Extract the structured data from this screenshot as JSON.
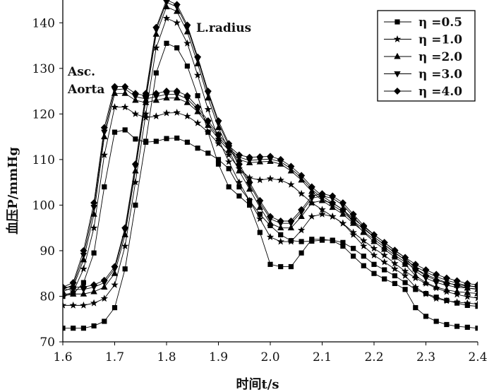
{
  "chart_data": {
    "type": "line",
    "xlabel": "时间t/s",
    "ylabel": "血压P/mmHg",
    "xlim": [
      1.6,
      2.4
    ],
    "ylim": [
      70,
      145
    ],
    "xticks": [
      "1.6",
      "1.7",
      "1.8",
      "1.9",
      "2.0",
      "2.1",
      "2.2",
      "2.3",
      "2.4"
    ],
    "yticks": [
      "70",
      "80",
      "90",
      "100",
      "110",
      "120",
      "130",
      "140"
    ],
    "grid": false,
    "legend_position": "top-right",
    "annotations": [
      {
        "text": "Asc.",
        "group": "Asc. Aorta"
      },
      {
        "text": "Aorta",
        "group": "Asc. Aorta"
      },
      {
        "text": "L.radius",
        "group": "L.radius"
      }
    ],
    "series_groups": [
      "Asc. Aorta",
      "L.radius"
    ],
    "series": [
      {
        "name": "η =0.5",
        "marker": "square",
        "aorta_x": [
          1.6,
          1.62,
          1.64,
          1.66,
          1.68,
          1.7,
          1.72,
          1.74,
          1.76,
          1.78,
          1.8,
          1.82,
          1.84,
          1.86,
          1.88,
          1.9,
          1.92,
          1.94,
          1.96,
          1.98,
          2.0,
          2.02,
          2.04,
          2.06,
          2.08,
          2.1,
          2.12,
          2.14,
          2.16,
          2.18,
          2.2,
          2.22,
          2.24,
          2.26,
          2.28,
          2.3,
          2.32,
          2.34,
          2.36,
          2.38,
          2.4
        ],
        "aorta_y": [
          80,
          80.5,
          83,
          89.5,
          104,
          116,
          116.5,
          114.5,
          113.8,
          114,
          114.6,
          114.7,
          113.8,
          112.5,
          111.4,
          110,
          108,
          104,
          101,
          98,
          95.5,
          93.5,
          92.2,
          92,
          92.1,
          92.3,
          92.3,
          91.8,
          90.5,
          88.8,
          87,
          85.8,
          84.5,
          83,
          81.5,
          80.6,
          79.8,
          79.1,
          78.5,
          78,
          77.8
        ],
        "radius_x": [
          1.6,
          1.62,
          1.64,
          1.66,
          1.68,
          1.7,
          1.72,
          1.74,
          1.76,
          1.78,
          1.8,
          1.82,
          1.84,
          1.86,
          1.88,
          1.9,
          1.92,
          1.94,
          1.96,
          1.98,
          2.0,
          2.02,
          2.04,
          2.06,
          2.08,
          2.1,
          2.12,
          2.14,
          2.16,
          2.18,
          2.2,
          2.22,
          2.24,
          2.26,
          2.28,
          2.3,
          2.32,
          2.34,
          2.36,
          2.38,
          2.4
        ],
        "radius_y": [
          73,
          73,
          73,
          73.5,
          74.5,
          77.5,
          86,
          100,
          114,
          129,
          135.5,
          134.5,
          130.5,
          124,
          116,
          109,
          104,
          102,
          100,
          94,
          87,
          86.5,
          86.5,
          89.5,
          92.5,
          92.5,
          92.2,
          91,
          88.8,
          86.7,
          85,
          83.8,
          82.8,
          81.5,
          77.5,
          75.6,
          74.5,
          73.8,
          73.4,
          73.2,
          73
        ]
      },
      {
        "name": "η =1.0",
        "marker": "star",
        "aorta_x": [
          1.6,
          1.62,
          1.64,
          1.66,
          1.68,
          1.7,
          1.72,
          1.74,
          1.76,
          1.78,
          1.8,
          1.82,
          1.84,
          1.86,
          1.88,
          1.9,
          1.92,
          1.94,
          1.96,
          1.98,
          2.0,
          2.02,
          2.04,
          2.06,
          2.08,
          2.1,
          2.12,
          2.14,
          2.16,
          2.18,
          2.2,
          2.22,
          2.24,
          2.26,
          2.28,
          2.3,
          2.32,
          2.34,
          2.36,
          2.38,
          2.4
        ],
        "aorta_y": [
          80,
          81,
          86,
          95,
          111,
          121.5,
          121.5,
          120,
          119.2,
          119.5,
          120.2,
          120.3,
          119.5,
          118,
          116,
          113.5,
          111,
          108,
          106,
          105.5,
          105.8,
          105.5,
          104.5,
          102.5,
          100.5,
          99,
          97.5,
          96,
          94,
          92.2,
          90.5,
          89,
          87.2,
          85.5,
          84,
          82.8,
          81.8,
          81,
          80.4,
          79.9,
          79.6
        ],
        "radius_x": [
          1.6,
          1.62,
          1.64,
          1.66,
          1.68,
          1.7,
          1.72,
          1.74,
          1.76,
          1.78,
          1.8,
          1.82,
          1.84,
          1.86,
          1.88,
          1.9,
          1.92,
          1.94,
          1.96,
          1.98,
          2.0,
          2.02,
          2.04,
          2.06,
          2.08,
          2.1,
          2.12,
          2.14,
          2.16,
          2.18,
          2.2,
          2.22,
          2.24,
          2.26,
          2.28,
          2.3,
          2.32,
          2.34,
          2.36,
          2.38,
          2.4
        ],
        "radius_y": [
          78,
          78,
          78,
          78.5,
          79.5,
          82.5,
          91,
          105,
          120,
          134.5,
          141,
          140,
          135.5,
          128.5,
          121,
          114.5,
          109.5,
          105,
          101,
          97,
          93,
          92,
          92,
          94.5,
          97.5,
          98,
          97.5,
          96,
          93.5,
          91,
          89,
          87.5,
          86,
          84.5,
          82,
          80.5,
          79.5,
          79,
          78.7,
          78.5,
          78.3
        ]
      },
      {
        "name": "η =2.0",
        "marker": "triangle-up",
        "aorta_x": [
          1.6,
          1.62,
          1.64,
          1.66,
          1.68,
          1.7,
          1.72,
          1.74,
          1.76,
          1.78,
          1.8,
          1.82,
          1.84,
          1.86,
          1.88,
          1.9,
          1.92,
          1.94,
          1.96,
          1.98,
          2.0,
          2.02,
          2.04,
          2.06,
          2.08,
          2.1,
          2.12,
          2.14,
          2.16,
          2.18,
          2.2,
          2.22,
          2.24,
          2.26,
          2.28,
          2.3,
          2.32,
          2.34,
          2.36,
          2.38,
          2.4
        ],
        "aorta_y": [
          81,
          82,
          88,
          98,
          115,
          124.5,
          124.5,
          123,
          122.5,
          123,
          123.5,
          123.5,
          122.5,
          120.5,
          117.5,
          114.5,
          112,
          110,
          109.3,
          109.5,
          109.6,
          109,
          107.5,
          105.5,
          103,
          101,
          99.5,
          98,
          96,
          94.2,
          92.5,
          90.8,
          89,
          87.5,
          86,
          84.8,
          83.8,
          83,
          82.4,
          81.8,
          81.5
        ],
        "radius_x": [
          1.6,
          1.62,
          1.64,
          1.66,
          1.68,
          1.7,
          1.72,
          1.74,
          1.76,
          1.78,
          1.8,
          1.82,
          1.84,
          1.86,
          1.88,
          1.9,
          1.92,
          1.94,
          1.96,
          1.98,
          2.0,
          2.02,
          2.04,
          2.06,
          2.08,
          2.1,
          2.12,
          2.14,
          2.16,
          2.18,
          2.2,
          2.22,
          2.24,
          2.26,
          2.28,
          2.3,
          2.32,
          2.34,
          2.36,
          2.38,
          2.4
        ],
        "radius_y": [
          80.5,
          80.5,
          80.5,
          81,
          82,
          85,
          93.5,
          107.5,
          123,
          137.5,
          143.5,
          142.5,
          138,
          131,
          123.5,
          117,
          112,
          107.5,
          103.5,
          99.5,
          96,
          95,
          95,
          97.5,
          100.5,
          101,
          100.5,
          99,
          96.5,
          94,
          92,
          90.3,
          88.6,
          87,
          84.5,
          83,
          82,
          81.4,
          81,
          80.8,
          80.6
        ]
      },
      {
        "name": "η =3.0",
        "marker": "triangle-down",
        "aorta_x": [
          1.6,
          1.62,
          1.64,
          1.66,
          1.68,
          1.7,
          1.72,
          1.74,
          1.76,
          1.78,
          1.8,
          1.82,
          1.84,
          1.86,
          1.88,
          1.9,
          1.92,
          1.94,
          1.96,
          1.98,
          2.0,
          2.02,
          2.04,
          2.06,
          2.08,
          2.1,
          2.12,
          2.14,
          2.16,
          2.18,
          2.2,
          2.22,
          2.24,
          2.26,
          2.28,
          2.3,
          2.32,
          2.34,
          2.36,
          2.38,
          2.4
        ],
        "aorta_y": [
          81.5,
          82.5,
          89,
          99.5,
          116,
          125.3,
          125.5,
          123.8,
          123.3,
          123.8,
          124.3,
          124.3,
          123.3,
          121,
          118,
          115,
          112.5,
          110.5,
          109.8,
          110,
          110.1,
          109.5,
          108,
          106,
          103.5,
          101.5,
          100,
          98.5,
          96.5,
          94.8,
          93,
          91.3,
          89.5,
          88,
          86.5,
          85.3,
          84.3,
          83.5,
          82.9,
          82.3,
          82
        ],
        "radius_x": [
          1.6,
          1.62,
          1.64,
          1.66,
          1.68,
          1.7,
          1.72,
          1.74,
          1.76,
          1.78,
          1.8,
          1.82,
          1.84,
          1.86,
          1.88,
          1.9,
          1.92,
          1.94,
          1.96,
          1.98,
          2.0,
          2.02,
          2.04,
          2.06,
          2.08,
          2.1,
          2.12,
          2.14,
          2.16,
          2.18,
          2.2,
          2.22,
          2.24,
          2.26,
          2.28,
          2.3,
          2.32,
          2.34,
          2.36,
          2.38,
          2.4
        ],
        "radius_y": [
          81.5,
          81.5,
          81.5,
          82,
          83,
          86,
          94.5,
          108.5,
          124,
          138.5,
          144.5,
          143.5,
          139,
          132,
          124.5,
          118,
          113,
          108.5,
          104.5,
          100.5,
          97,
          96,
          96,
          98.5,
          101.5,
          102,
          101.5,
          100,
          97.5,
          95,
          93,
          91.3,
          89.6,
          88,
          85.5,
          84,
          83,
          82.4,
          82,
          81.8,
          81.6
        ]
      },
      {
        "name": "η =4.0",
        "marker": "diamond",
        "aorta_x": [
          1.6,
          1.62,
          1.64,
          1.66,
          1.68,
          1.7,
          1.72,
          1.74,
          1.76,
          1.78,
          1.8,
          1.82,
          1.84,
          1.86,
          1.88,
          1.9,
          1.92,
          1.94,
          1.96,
          1.98,
          2.0,
          2.02,
          2.04,
          2.06,
          2.08,
          2.1,
          2.12,
          2.14,
          2.16,
          2.18,
          2.2,
          2.22,
          2.24,
          2.26,
          2.28,
          2.3,
          2.32,
          2.34,
          2.36,
          2.38,
          2.4
        ],
        "aorta_y": [
          82,
          83,
          90,
          100.5,
          117,
          126,
          126,
          124.5,
          124,
          124.5,
          125,
          125,
          124,
          121.5,
          118.5,
          115.5,
          113,
          111,
          110.5,
          110.6,
          110.7,
          110,
          108.5,
          106.5,
          104,
          102,
          100.5,
          99,
          97,
          95.3,
          93.5,
          91.8,
          90,
          88.5,
          87,
          85.8,
          84.8,
          84,
          83.4,
          82.8,
          82.5
        ],
        "radius_x": [
          1.6,
          1.62,
          1.64,
          1.66,
          1.68,
          1.7,
          1.72,
          1.74,
          1.76,
          1.78,
          1.8,
          1.82,
          1.84,
          1.86,
          1.88,
          1.9,
          1.92,
          1.94,
          1.96,
          1.98,
          2.0,
          2.02,
          2.04,
          2.06,
          2.08,
          2.1,
          2.12,
          2.14,
          2.16,
          2.18,
          2.2,
          2.22,
          2.24,
          2.26,
          2.28,
          2.3,
          2.32,
          2.34,
          2.36,
          2.38,
          2.4
        ],
        "radius_y": [
          82,
          82,
          82,
          82.5,
          83.5,
          86.5,
          95,
          109,
          124.5,
          139,
          145,
          144,
          139.5,
          132.5,
          125,
          118.5,
          113.5,
          109,
          105,
          101,
          97.5,
          96.5,
          96.5,
          99,
          102,
          102.5,
          102,
          100.5,
          98,
          95.5,
          93.5,
          91.8,
          90.1,
          88.5,
          86,
          84.5,
          83.5,
          82.9,
          82.5,
          82.3,
          82.1
        ]
      }
    ]
  }
}
